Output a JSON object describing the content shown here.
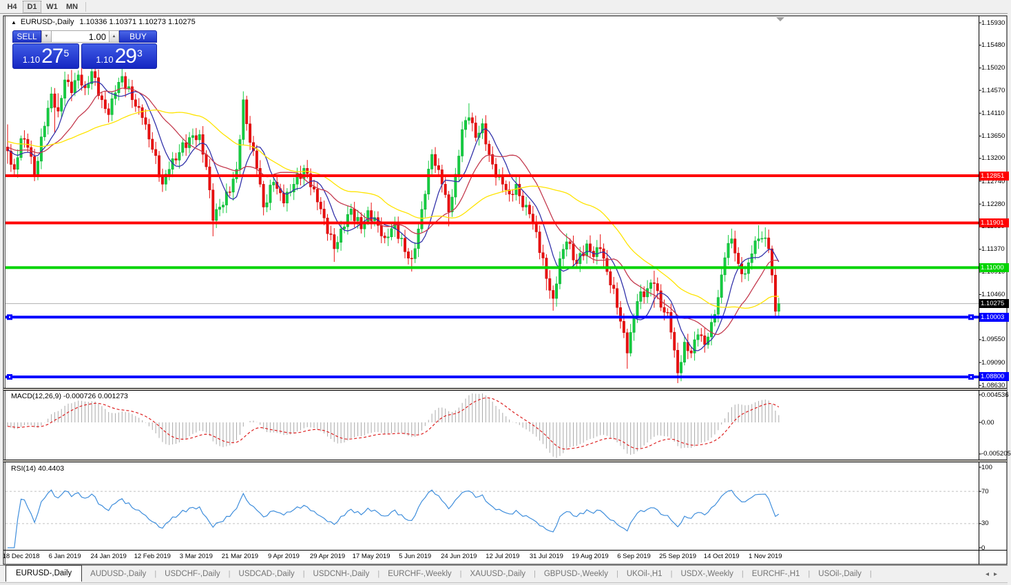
{
  "toolbar": {
    "timeframes": [
      {
        "label": "H4",
        "active": false
      },
      {
        "label": "D1",
        "active": true
      },
      {
        "label": "W1",
        "active": false
      },
      {
        "label": "MN",
        "active": false
      }
    ]
  },
  "icons": {
    "collapse": "▲",
    "spinner_down": "▼",
    "spinner_up": "▲",
    "tab_prev": "◂",
    "tab_next": "▸",
    "shift_marker": "▼"
  },
  "chart": {
    "title": {
      "symbol": "EURUSD-,Daily",
      "ohlc": "1.10336 1.10371 1.10273 1.10275"
    },
    "trade_panel": {
      "sell_label": "SELL",
      "buy_label": "BUY",
      "volume": "1.00",
      "sell_price_small": "1.10",
      "sell_price_big": "27",
      "sell_price_sup": "5",
      "buy_price_small": "1.10",
      "buy_price_big": "29",
      "buy_price_sup": "3"
    }
  },
  "chart_data": {
    "type": "candlestick",
    "symbol": "EURUSD-,Daily",
    "colors": {
      "up_candle": "#15cd41",
      "up_stroke": "#0aa830",
      "down_candle": "#ea0f0f",
      "down_stroke": "#c40808",
      "ma_fast": "#3232aa",
      "ma_mid": "#c43a4e",
      "ma_slow": "#ffe400",
      "macd_hist": "#a9a9a9",
      "macd_signal": "#dd2020",
      "rsi_line": "#3f8edc",
      "current_price_line": "#b0b0b0"
    },
    "y_axis_ticks": [
      "1.15930",
      "1.15480",
      "1.15020",
      "1.14570",
      "1.14110",
      "1.13650",
      "1.13200",
      "1.12740",
      "1.12280",
      "1.11830",
      "1.11370",
      "1.10910",
      "1.10460",
      "1.09550",
      "1.09090",
      "1.08630"
    ],
    "hlines": [
      {
        "price": 1.12851,
        "label": "1.12851",
        "color": "#ff0000",
        "width": 4,
        "handles": false
      },
      {
        "price": 1.11901,
        "label": "1.11901",
        "color": "#ff0000",
        "width": 4,
        "handles": false
      },
      {
        "price": 1.11,
        "label": "1.11000",
        "color": "#00d400",
        "width": 4,
        "handles": false
      },
      {
        "price": 1.10003,
        "label": "1.10003",
        "color": "#0000ff",
        "width": 4,
        "handles": true
      },
      {
        "price": 1.088,
        "label": "1.08800",
        "color": "#0000ff",
        "width": 4,
        "handles": true
      }
    ],
    "current_price": {
      "price": 1.10275,
      "label": "1.10275",
      "badge_color": "#000000"
    },
    "x_axis_labels": [
      {
        "i": 0,
        "label": "18 Dec 2018"
      },
      {
        "i": 13,
        "label": "6 Jan 2019"
      },
      {
        "i": 26,
        "label": "24 Jan 2019"
      },
      {
        "i": 39,
        "label": "12 Feb 2019"
      },
      {
        "i": 52,
        "label": "3 Mar 2019"
      },
      {
        "i": 65,
        "label": "21 Mar 2019"
      },
      {
        "i": 78,
        "label": "9 Apr 2019"
      },
      {
        "i": 91,
        "label": "29 Apr 2019"
      },
      {
        "i": 104,
        "label": "17 May 2019"
      },
      {
        "i": 117,
        "label": "5 Jun 2019"
      },
      {
        "i": 130,
        "label": "24 Jun 2019"
      },
      {
        "i": 143,
        "label": "12 Jul 2019"
      },
      {
        "i": 156,
        "label": "31 Jul 2019"
      },
      {
        "i": 169,
        "label": "19 Aug 2019"
      },
      {
        "i": 182,
        "label": "6 Sep 2019"
      },
      {
        "i": 195,
        "label": "25 Sep 2019"
      },
      {
        "i": 208,
        "label": "14 Oct 2019"
      },
      {
        "i": 221,
        "label": "1 Nov 2019"
      }
    ],
    "close_anchors": [
      [
        -4,
        1.1335
      ],
      [
        -2,
        1.1298
      ],
      [
        0,
        1.136
      ],
      [
        2,
        1.1342
      ],
      [
        4,
        1.1288
      ],
      [
        7,
        1.1385
      ],
      [
        9,
        1.145
      ],
      [
        11,
        1.1415
      ],
      [
        13,
        1.1478
      ],
      [
        15,
        1.1452
      ],
      [
        17,
        1.1488
      ],
      [
        19,
        1.1462
      ],
      [
        21,
        1.1495
      ],
      [
        24,
        1.1438
      ],
      [
        26,
        1.1408
      ],
      [
        28,
        1.1452
      ],
      [
        30,
        1.1485
      ],
      [
        33,
        1.1438
      ],
      [
        36,
        1.1402
      ],
      [
        39,
        1.1338
      ],
      [
        42,
        1.1268
      ],
      [
        44,
        1.1298
      ],
      [
        47,
        1.1332
      ],
      [
        50,
        1.1362
      ],
      [
        53,
        1.1368
      ],
      [
        55,
        1.1303
      ],
      [
        57,
        1.1195
      ],
      [
        59,
        1.1222
      ],
      [
        62,
        1.1252
      ],
      [
        64,
        1.1298
      ],
      [
        66,
        1.1438
      ],
      [
        68,
        1.1352
      ],
      [
        70,
        1.13
      ],
      [
        72,
        1.1222
      ],
      [
        75,
        1.1272
      ],
      [
        78,
        1.123
      ],
      [
        81,
        1.1268
      ],
      [
        84,
        1.13
      ],
      [
        87,
        1.1258
      ],
      [
        90,
        1.12
      ],
      [
        93,
        1.1138
      ],
      [
        95,
        1.1178
      ],
      [
        98,
        1.1218
      ],
      [
        101,
        1.1178
      ],
      [
        103,
        1.1215
      ],
      [
        106,
        1.1185
      ],
      [
        108,
        1.116
      ],
      [
        111,
        1.1188
      ],
      [
        114,
        1.1132
      ],
      [
        116,
        1.1118
      ],
      [
        118,
        1.1178
      ],
      [
        120,
        1.1248
      ],
      [
        122,
        1.1328
      ],
      [
        125,
        1.1268
      ],
      [
        127,
        1.1212
      ],
      [
        129,
        1.1288
      ],
      [
        131,
        1.1378
      ],
      [
        133,
        1.1402
      ],
      [
        135,
        1.1362
      ],
      [
        137,
        1.139
      ],
      [
        139,
        1.1328
      ],
      [
        141,
        1.1282
      ],
      [
        143,
        1.1268
      ],
      [
        145,
        1.1248
      ],
      [
        147,
        1.1268
      ],
      [
        149,
        1.1222
      ],
      [
        151,
        1.1208
      ],
      [
        153,
        1.1172
      ],
      [
        156,
        1.1078
      ],
      [
        158,
        1.1038
      ],
      [
        160,
        1.1118
      ],
      [
        162,
        1.1152
      ],
      [
        165,
        1.1108
      ],
      [
        168,
        1.1148
      ],
      [
        170,
        1.1122
      ],
      [
        172,
        1.1138
      ],
      [
        174,
        1.1092
      ],
      [
        176,
        1.1058
      ],
      [
        178,
        1.0992
      ],
      [
        180,
        1.0928
      ],
      [
        183,
        1.1032
      ],
      [
        186,
        1.1058
      ],
      [
        188,
        1.1068
      ],
      [
        190,
        1.102
      ],
      [
        192,
        1.101
      ],
      [
        193,
        1.097
      ],
      [
        195,
        1.0888
      ],
      [
        197,
        1.095
      ],
      [
        199,
        1.0928
      ],
      [
        201,
        1.0965
      ],
      [
        203,
        1.0945
      ],
      [
        205,
        1.099
      ],
      [
        207,
        1.104
      ],
      [
        209,
        1.112
      ],
      [
        211,
        1.1158
      ],
      [
        213,
        1.1108
      ],
      [
        215,
        1.1088
      ],
      [
        217,
        1.1128
      ],
      [
        219,
        1.1158
      ],
      [
        221,
        1.116
      ],
      [
        222,
        1.1138
      ],
      [
        223,
        1.1085
      ],
      [
        224,
        1.1012
      ],
      [
        225,
        1.10275
      ]
    ],
    "wick_overrides": {
      "-4": {
        "hi": 0.003,
        "lo": 0.0012
      },
      "10": {
        "lo": 0.0035
      },
      "11": {
        "hi": 0.0012
      },
      "15": {
        "hi": 0.001
      },
      "21": {
        "hi": 0.001
      },
      "57": {
        "lo": 0.0022
      },
      "93": {
        "lo": 0.001
      },
      "116": {
        "lo": 0.001
      },
      "127": {
        "lo": 0.0012
      },
      "133": {
        "hi": 0.0012
      },
      "156": {
        "lo": 0.0014
      },
      "158": {
        "lo": 0.0018
      },
      "172": {
        "hi": 0.0012
      },
      "180": {
        "lo": 0.0015
      },
      "188": {
        "lo": 0.004,
        "hi": 0.0008
      },
      "195": {
        "lo": 0.001
      },
      "211": {
        "hi": 0.0014
      },
      "219": {
        "hi": 0.0012
      },
      "221": {
        "hi": 0.001
      }
    },
    "moving_averages": [
      {
        "period": 8,
        "color": "#3232aa"
      },
      {
        "period": 18,
        "color": "#c43a4e"
      },
      {
        "period": 42,
        "color": "#ffe400"
      }
    ],
    "macd": {
      "label": "MACD(12,26,9)",
      "values_text": "-0.000726 0.001273",
      "fast": 12,
      "slow": 26,
      "signal": 9,
      "scale_ticks": [
        "0.004536",
        "0.00",
        "-0.005205"
      ]
    },
    "rsi": {
      "label": "RSI(14)",
      "value_text": "40.4403",
      "period": 14,
      "scale_ticks": [
        "100",
        "70",
        "30",
        "0"
      ],
      "levels": [
        70,
        30
      ]
    }
  },
  "tabs": {
    "separator": "|",
    "items": [
      {
        "label": "EURUSD-,Daily",
        "active": true
      },
      {
        "label": "AUDUSD-,Daily",
        "active": false
      },
      {
        "label": "USDCHF-,Daily",
        "active": false
      },
      {
        "label": "USDCAD-,Daily",
        "active": false
      },
      {
        "label": "USDCNH-,Daily",
        "active": false
      },
      {
        "label": "EURCHF-,Weekly",
        "active": false
      },
      {
        "label": "XAUUSD-,Daily",
        "active": false
      },
      {
        "label": "GBPUSD-,Weekly",
        "active": false
      },
      {
        "label": "UKOil-,H1",
        "active": false
      },
      {
        "label": "USDX-,Weekly",
        "active": false
      },
      {
        "label": "EURCHF-,H1",
        "active": false
      },
      {
        "label": "USOil-,Daily",
        "active": false
      }
    ]
  }
}
